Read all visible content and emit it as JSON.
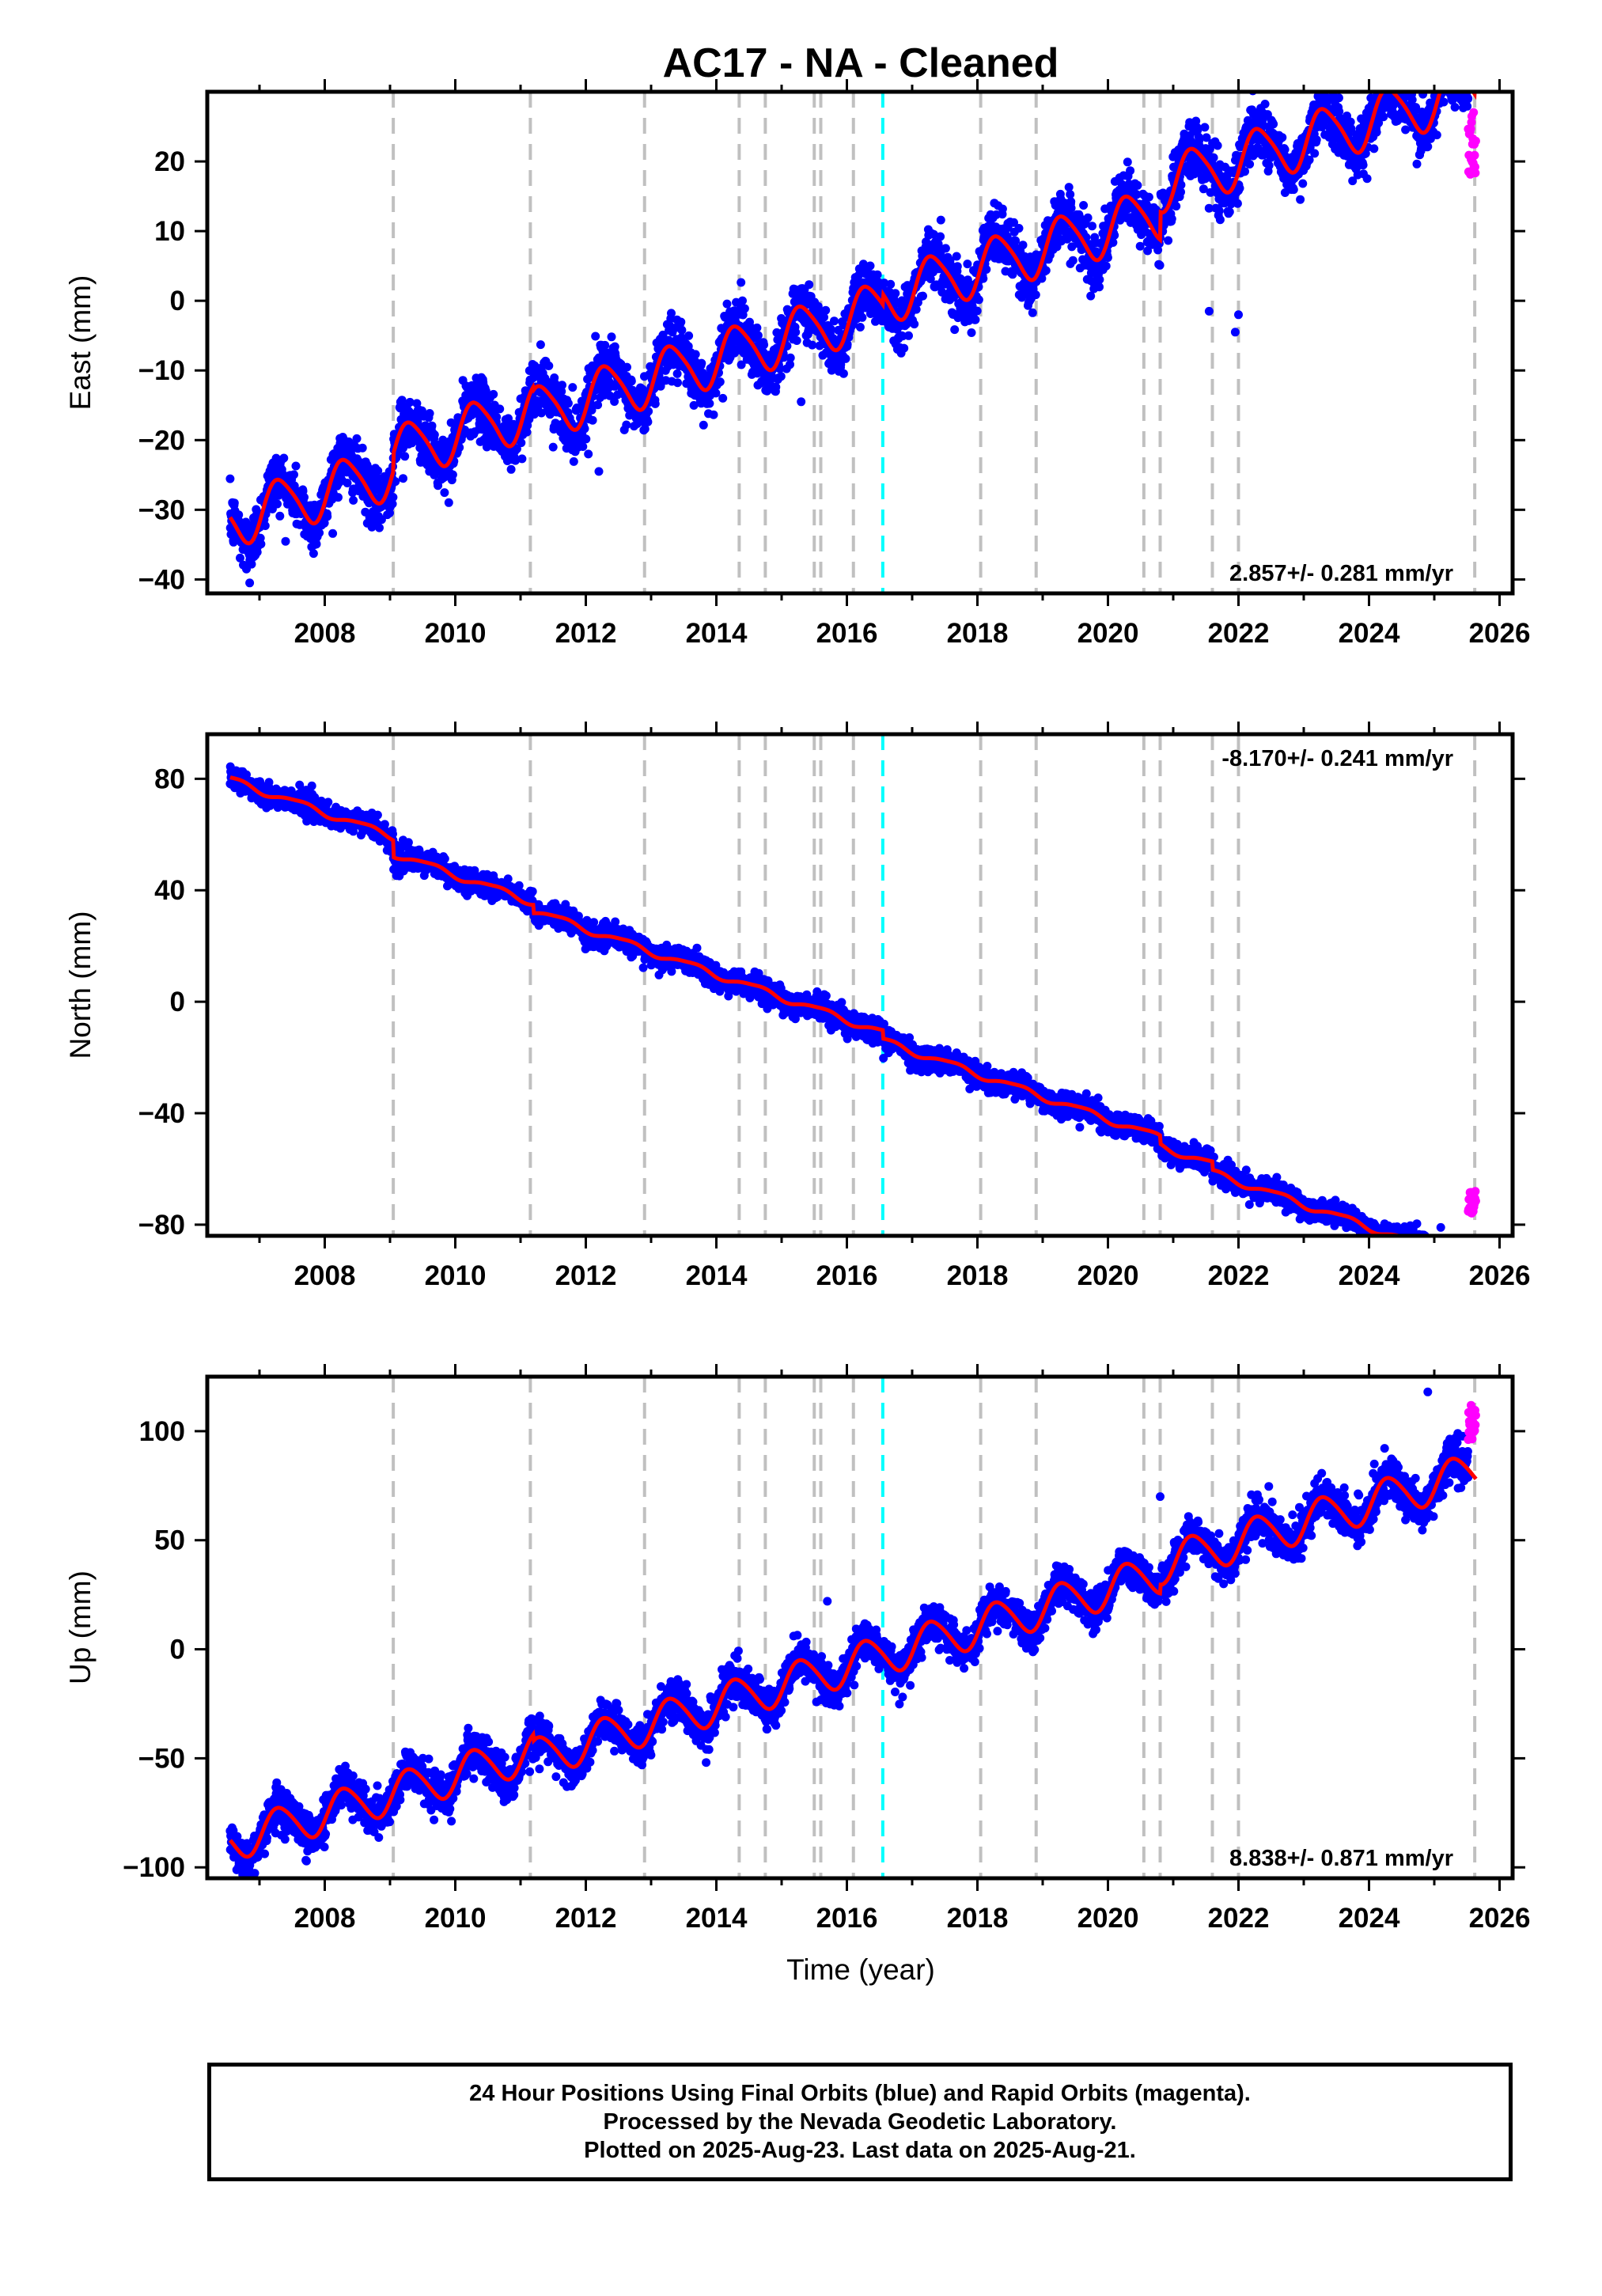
{
  "title": "AC17  - NA - Cleaned",
  "xlabel": "Time (year)",
  "caption": [
    "24 Hour Positions Using Final Orbits (blue) and Rapid Orbits (magenta).",
    "Processed by the Nevada Geodetic Laboratory.",
    "Plotted on 2025-Aug-23. Last data on 2025-Aug-21."
  ],
  "colors": {
    "final": "#0000ff",
    "rapid": "#ff00ff",
    "model": "#ff0000",
    "steps": "#c0c0c0",
    "antenna": "#00ffff"
  },
  "chart_data": [
    {
      "type": "scatter",
      "ylabel": "East (mm)",
      "xlim": [
        2006.2,
        2026.2
      ],
      "ylim": [
        -42,
        30
      ],
      "xticks": [
        2008,
        2010,
        2012,
        2014,
        2016,
        2018,
        2020,
        2022,
        2024,
        2026
      ],
      "yticks": [
        -40,
        -30,
        -20,
        -10,
        0,
        10,
        20
      ],
      "rate_text": "2.857+/- 0.281 mm/yr",
      "rate_position": "bottom-right",
      "model": {
        "rate": 2.857,
        "ref_year": 2016.0,
        "ref_value": -4.5,
        "annual_amp": 3.8,
        "annual_phase": 5.9,
        "semiannual_amp": 0.6,
        "offsets": [
          [
            2009.05,
            2.5
          ],
          [
            2011.2,
            -0.5
          ],
          [
            2016.55,
            1.5
          ],
          [
            2020.8,
            4.0
          ],
          [
            2025.62,
            2.0
          ]
        ]
      },
      "series": [
        {
          "name": "Final Orbits",
          "color": "blue",
          "x_start": 2006.55,
          "x_end": 2025.52,
          "scatter": 2.0,
          "outliers": [
            [
              2006.8,
              -38.5
            ],
            [
              2006.85,
              -40.5
            ],
            [
              2007.85,
              -35.0
            ],
            [
              2009.2,
              -25.5
            ],
            [
              2011.5,
              -21.0
            ],
            [
              2012.2,
              -24.5
            ],
            [
              2014.1,
              -14.0
            ],
            [
              2015.3,
              -14.5
            ],
            [
              2021.55,
              -1.5
            ],
            [
              2021.95,
              -4.5
            ],
            [
              2022.0,
              -2.0
            ]
          ]
        },
        {
          "name": "Rapid Orbits",
          "color": "magenta",
          "x_start": 2025.52,
          "x_end": 2025.64,
          "y_range": [
            18,
            28
          ]
        }
      ]
    },
    {
      "type": "scatter",
      "ylabel": "North (mm)",
      "xlim": [
        2006.2,
        2026.2
      ],
      "ylim": [
        -84,
        96
      ],
      "xticks": [
        2008,
        2010,
        2012,
        2014,
        2016,
        2018,
        2020,
        2022,
        2024,
        2026
      ],
      "yticks": [
        -80,
        -40,
        0,
        40,
        80
      ],
      "rate_text": "-8.170+/- 0.241 mm/yr",
      "rate_position": "top-right",
      "model": {
        "rate": -8.17,
        "ref_year": 2016.0,
        "ref_value": 2.5,
        "annual_amp": 1.2,
        "annual_phase": 4.0,
        "semiannual_amp": 0.3,
        "offsets": [
          [
            2009.05,
            -6.0
          ],
          [
            2011.2,
            -3.0
          ],
          [
            2016.55,
            -3.0
          ],
          [
            2020.8,
            -3.0
          ],
          [
            2021.6,
            -3.0
          ]
        ]
      },
      "series": [
        {
          "name": "Final Orbits",
          "color": "blue",
          "x_start": 2006.55,
          "x_end": 2025.52,
          "scatter": 2.0,
          "outliers": [
            [
              2009.2,
              58.0
            ],
            [
              2025.1,
              -81.0
            ]
          ]
        },
        {
          "name": "Rapid Orbits",
          "color": "magenta",
          "x_start": 2025.52,
          "x_end": 2025.64,
          "y_range": [
            -76,
            -68
          ]
        }
      ]
    },
    {
      "type": "scatter",
      "ylabel": "Up (mm)",
      "xlim": [
        2006.2,
        2026.2
      ],
      "ylim": [
        -105,
        125
      ],
      "xticks": [
        2008,
        2010,
        2012,
        2014,
        2016,
        2018,
        2020,
        2022,
        2024,
        2026
      ],
      "yticks": [
        -100,
        -50,
        0,
        50,
        100
      ],
      "rate_text": "8.838+/- 0.871 mm/yr",
      "rate_position": "bottom-right",
      "model": {
        "rate": 8.838,
        "ref_year": 2016.0,
        "ref_value": -4.5,
        "annual_amp": 9.0,
        "annual_phase": 5.95,
        "semiannual_amp": 1.0,
        "offsets": [
          [
            2011.2,
            -3.0
          ],
          [
            2020.8,
            4.0
          ]
        ]
      },
      "series": [
        {
          "name": "Final Orbits",
          "color": "blue",
          "x_start": 2006.55,
          "x_end": 2025.52,
          "scatter": 4.5,
          "outliers": [
            [
              2015.7,
              22.0
            ],
            [
              2024.9,
              118.0
            ],
            [
              2020.8,
              70.0
            ]
          ]
        },
        {
          "name": "Rapid Orbits",
          "color": "magenta",
          "x_start": 2025.52,
          "x_end": 2025.64,
          "y_range": [
            96,
            112
          ]
        }
      ]
    }
  ],
  "step_lines": {
    "equipment": [
      2009.05,
      2011.15,
      2012.9,
      2014.35,
      2014.75,
      2015.5,
      2015.6,
      2016.1,
      2018.05,
      2018.9,
      2020.55,
      2020.8,
      2021.6,
      2022.0,
      2025.62
    ],
    "antenna": [
      2016.55
    ]
  }
}
